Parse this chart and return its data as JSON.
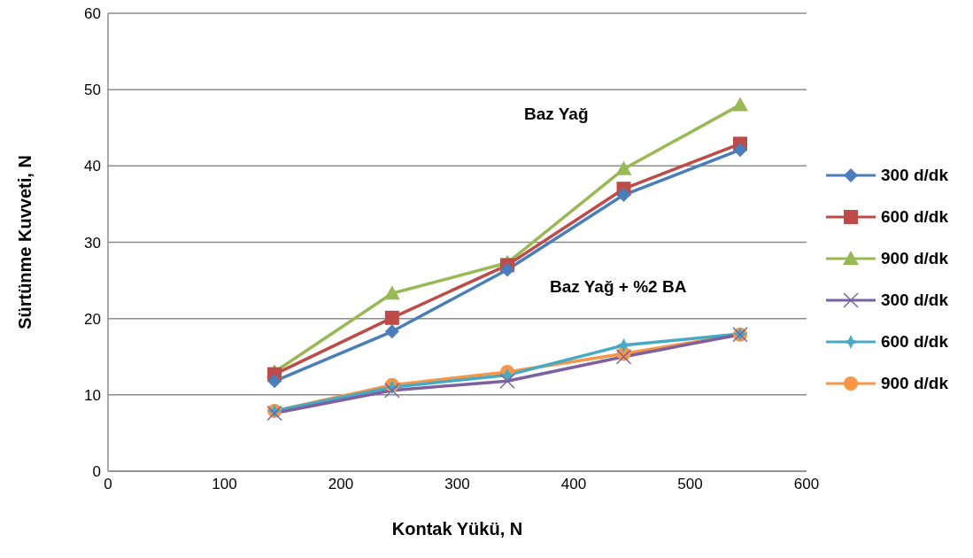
{
  "chart_data": {
    "type": "line",
    "xlabel": "Kontak Yükü, N",
    "ylabel": "Sürtünme Kuvveti, N",
    "x": [
      143,
      244,
      343,
      443,
      543
    ],
    "series": [
      {
        "name": "300 d/dk",
        "color": "#4a7ebb",
        "marker": "diamond",
        "values": [
          11.8,
          18.3,
          26.4,
          36.2,
          42.1
        ]
      },
      {
        "name": "600 d/dk",
        "color": "#be4b48",
        "marker": "square",
        "values": [
          12.7,
          20.1,
          27.0,
          37.0,
          42.9
        ]
      },
      {
        "name": "900 d/dk",
        "color": "#98b954",
        "marker": "triangle",
        "values": [
          13.0,
          23.3,
          27.3,
          39.6,
          48.0
        ]
      },
      {
        "name": "300 d/dk",
        "color": "#7d60a0",
        "marker": "cross",
        "values": [
          7.6,
          10.6,
          11.8,
          15.0,
          17.9
        ]
      },
      {
        "name": "600 d/dk",
        "color": "#46aac5",
        "marker": "star",
        "values": [
          7.9,
          11.0,
          12.6,
          16.5,
          18.0
        ]
      },
      {
        "name": "900 d/dk",
        "color": "#f79646",
        "marker": "circle",
        "values": [
          7.9,
          11.3,
          13.0,
          15.4,
          17.9
        ]
      }
    ],
    "annotations": [
      "Baz Yağ",
      "Baz Yağ + %2 BA"
    ],
    "xlim": [
      0,
      600
    ],
    "xticks": [
      0,
      100,
      200,
      300,
      400,
      500,
      600
    ],
    "ylim": [
      0,
      60
    ],
    "yticks": [
      0,
      10,
      20,
      30,
      40,
      50,
      60
    ],
    "grid": "y",
    "legend": "right",
    "line_style": "solid"
  }
}
